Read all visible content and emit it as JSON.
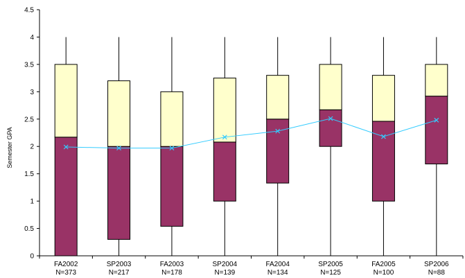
{
  "chart_data": {
    "type": "boxplot",
    "ylabel": "Semester GPA",
    "ylim": [
      0,
      4.5
    ],
    "yticks": [
      "0",
      "0.5",
      "1",
      "1.5",
      "2",
      "2.5",
      "3",
      "3.5",
      "4",
      "4.5"
    ],
    "categories": [
      {
        "term": "FA2002",
        "n": "N=373"
      },
      {
        "term": "SP2003",
        "n": "N=217"
      },
      {
        "term": "FA2003",
        "n": "N=178"
      },
      {
        "term": "SP2004",
        "n": "N=139"
      },
      {
        "term": "FA2004",
        "n": "N=134"
      },
      {
        "term": "SP2005",
        "n": "N=125"
      },
      {
        "term": "FA2005",
        "n": "N=100"
      },
      {
        "term": "SP2006",
        "n": "N=88"
      }
    ],
    "series": [
      {
        "term": "FA2002",
        "min": 0.0,
        "q1": 0.0,
        "median": 2.17,
        "q3": 3.5,
        "max": 4.0,
        "mean": 1.99
      },
      {
        "term": "SP2003",
        "min": 0.0,
        "q1": 0.3,
        "median": 2.0,
        "q3": 3.2,
        "max": 4.0,
        "mean": 1.97
      },
      {
        "term": "FA2003",
        "min": 0.0,
        "q1": 0.54,
        "median": 2.0,
        "q3": 3.0,
        "max": 4.0,
        "mean": 1.97
      },
      {
        "term": "SP2004",
        "min": 0.0,
        "q1": 1.0,
        "median": 2.08,
        "q3": 3.25,
        "max": 4.0,
        "mean": 2.17
      },
      {
        "term": "FA2004",
        "min": 0.0,
        "q1": 1.33,
        "median": 2.5,
        "q3": 3.3,
        "max": 4.0,
        "mean": 2.28
      },
      {
        "term": "SP2005",
        "min": 0.0,
        "q1": 2.0,
        "median": 2.67,
        "q3": 3.5,
        "max": 4.0,
        "mean": 2.51
      },
      {
        "term": "FA2005",
        "min": 0.0,
        "q1": 1.0,
        "median": 2.46,
        "q3": 3.3,
        "max": 4.0,
        "mean": 2.18
      },
      {
        "term": "SP2006",
        "min": 0.0,
        "q1": 1.68,
        "median": 2.92,
        "q3": 3.5,
        "max": 4.0,
        "mean": 2.48
      }
    ],
    "colors": {
      "lower_box": "#993366",
      "upper_box": "#ffffcc",
      "mean_line": "#33ccff",
      "mean_marker": "#33ccff",
      "axis": "#000000"
    },
    "grid": false,
    "legend": "none"
  }
}
